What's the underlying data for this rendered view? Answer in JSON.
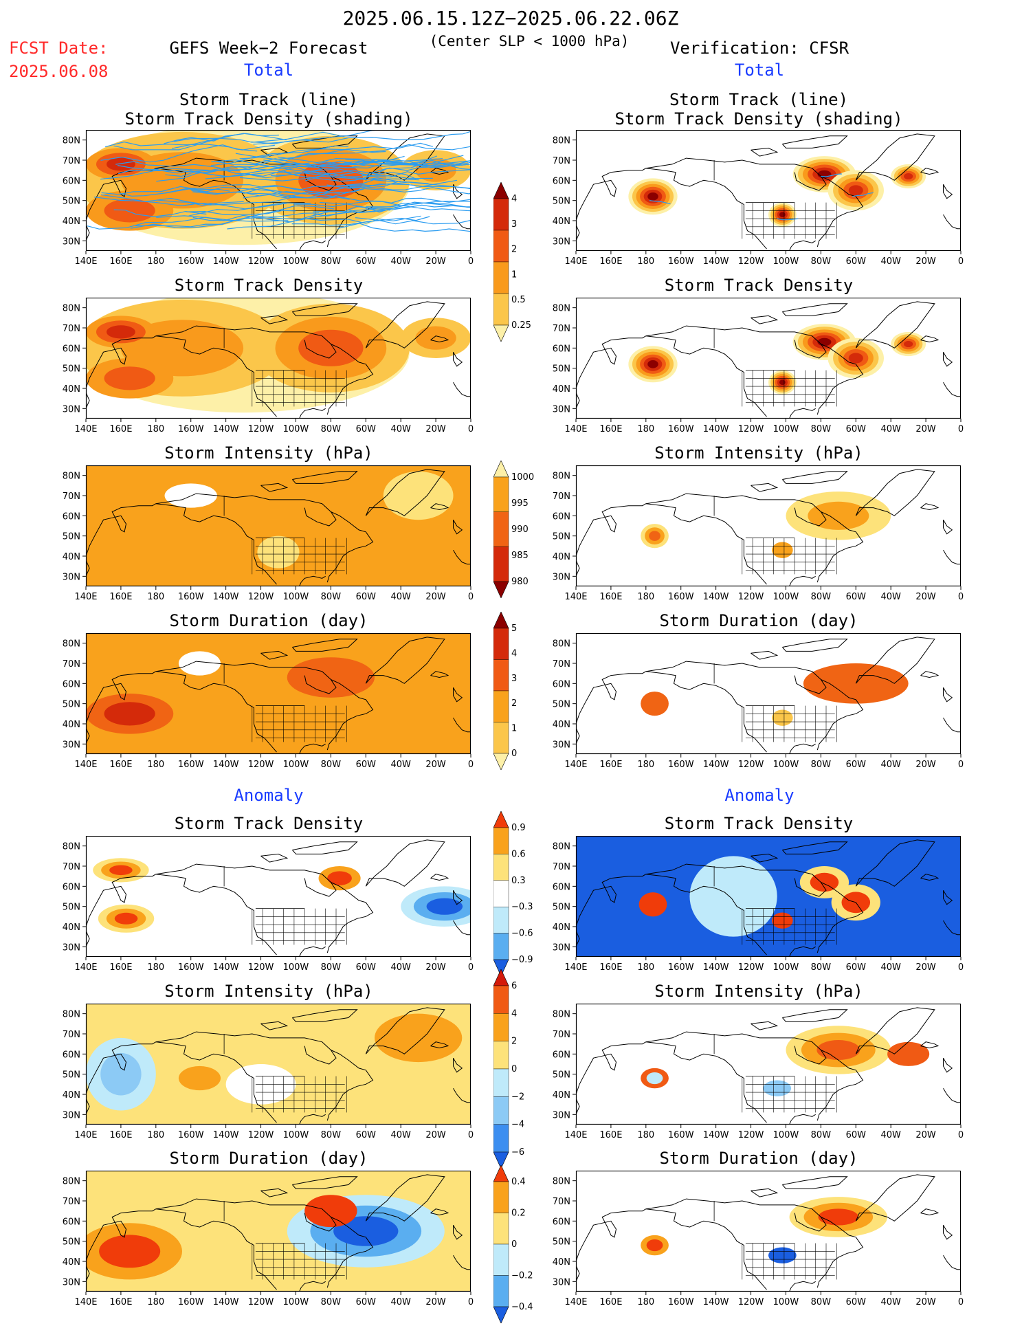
{
  "header": {
    "date_range": "2025.06.15.12Z−2025.06.22.06Z",
    "subtitle": "(Center SLP < 1000 hPa)",
    "fcst_label": "FCST Date:",
    "fcst_date": "2025.06.08",
    "left_title": "GEFS Week−2 Forecast",
    "right_title": "Verification: CFSR",
    "total_label": "Total",
    "anomaly_label": "Anomaly"
  },
  "axes": {
    "x_ticks": [
      "140E",
      "160E",
      "180",
      "160W",
      "140W",
      "120W",
      "100W",
      "80W",
      "60W",
      "40W",
      "20W",
      "0"
    ],
    "y_ticks": [
      "80N",
      "70N",
      "60N",
      "50N",
      "40N",
      "30N"
    ]
  },
  "colors": {
    "land_outline": "#000000",
    "track_line": "#2b9cf0"
  },
  "colorbars": [
    {
      "id": "density",
      "labels": [
        "4",
        "3",
        "2",
        "1",
        "0.5",
        "0.25"
      ],
      "colors": [
        "#8b0000",
        "#d42a0a",
        "#f05a14",
        "#f99a1c",
        "#fbc64a",
        "#fdf0a8"
      ]
    },
    {
      "id": "intensity",
      "labels": [
        "1000",
        "995",
        "990",
        "985",
        "980"
      ],
      "colors": [
        "#fdf0a8",
        "#f9a21c",
        "#f06414",
        "#d42a0a",
        "#8b0000"
      ]
    },
    {
      "id": "duration",
      "labels": [
        "5",
        "4",
        "3",
        "2",
        "1",
        "0"
      ],
      "colors": [
        "#8b0000",
        "#d42a0a",
        "#f05a14",
        "#f9a21c",
        "#fbc64a",
        "#fdf0a8"
      ]
    },
    {
      "id": "anom_density",
      "labels": [
        "0.9",
        "0.6",
        "0.3",
        "−0.3",
        "−0.6",
        "−0.9"
      ],
      "colors": [
        "#f03c0a",
        "#f9a21c",
        "#fde27a",
        "#ffffff",
        "#bfeafa",
        "#5aaef0",
        "#1a5ee0"
      ]
    },
    {
      "id": "anom_intensity",
      "labels": [
        "6",
        "4",
        "2",
        "0",
        "−2",
        "−4",
        "−6"
      ],
      "colors": [
        "#d41a0a",
        "#f05a14",
        "#f9a21c",
        "#fde27a",
        "#bfeafa",
        "#8ccaf5",
        "#3c8ef0",
        "#1a5ee0"
      ]
    },
    {
      "id": "anom_duration",
      "labels": [
        "0.4",
        "0.2",
        "0",
        "−0.2",
        "−0.4"
      ],
      "colors": [
        "#f03c0a",
        "#f9a21c",
        "#fde27a",
        "#bfeafa",
        "#5aaef0",
        "#1a5ee0"
      ]
    }
  ],
  "chart_data": [
    {
      "type": "heatmap",
      "panel": "Total forecast",
      "title_line1": "Storm Track (line)",
      "title_line2": "Storm Track Density (shading)",
      "xlim": [
        "140E",
        "0"
      ],
      "ylim": [
        25,
        85
      ],
      "regions": [
        {
          "lon": [
            140,
            300
          ],
          "lat": [
            30,
            85
          ],
          "level": "0.5-2"
        },
        {
          "lon": [
            150,
            200
          ],
          "lat": [
            60,
            75
          ],
          "level": "2-3"
        }
      ]
    },
    {
      "type": "heatmap",
      "panel": "Total verification",
      "title_line1": "Storm Track (line)",
      "title_line2": "Storm Track Density (shading)",
      "regions": [
        {
          "lon": [
            185
          ],
          "lat": [
            52
          ],
          "level": "4"
        },
        {
          "lon": [
            260
          ],
          "lat": [
            42
          ],
          "level": "4"
        },
        {
          "lon": [
            280
          ],
          "lat": [
            63
          ],
          "level": "4"
        },
        {
          "lon": [
            300
          ],
          "lat": [
            55
          ],
          "level": "4"
        },
        {
          "lon": [
            330
          ],
          "lat": [
            62
          ],
          "level": "3"
        }
      ]
    },
    {
      "type": "heatmap",
      "panel": "Total forecast",
      "title": "Storm Track Density"
    },
    {
      "type": "heatmap",
      "panel": "Total verification",
      "title": "Storm Track Density"
    },
    {
      "type": "heatmap",
      "panel": "Total forecast",
      "title": "Storm Intensity (hPa)"
    },
    {
      "type": "heatmap",
      "panel": "Total verification",
      "title": "Storm Intensity (hPa)"
    },
    {
      "type": "heatmap",
      "panel": "Total forecast",
      "title": "Storm Duration (day)"
    },
    {
      "type": "heatmap",
      "panel": "Total verification",
      "title": "Storm Duration (day)"
    },
    {
      "type": "heatmap",
      "panel": "Anomaly forecast",
      "title": "Storm Track Density"
    },
    {
      "type": "heatmap",
      "panel": "Anomaly verification",
      "title": "Storm Track Density"
    },
    {
      "type": "heatmap",
      "panel": "Anomaly forecast",
      "title": "Storm Intensity (hPa)"
    },
    {
      "type": "heatmap",
      "panel": "Anomaly verification",
      "title": "Storm Intensity (hPa)"
    },
    {
      "type": "heatmap",
      "panel": "Anomaly forecast",
      "title": "Storm Duration (day)"
    },
    {
      "type": "heatmap",
      "panel": "Anomaly verification",
      "title": "Storm Duration (day)"
    }
  ]
}
